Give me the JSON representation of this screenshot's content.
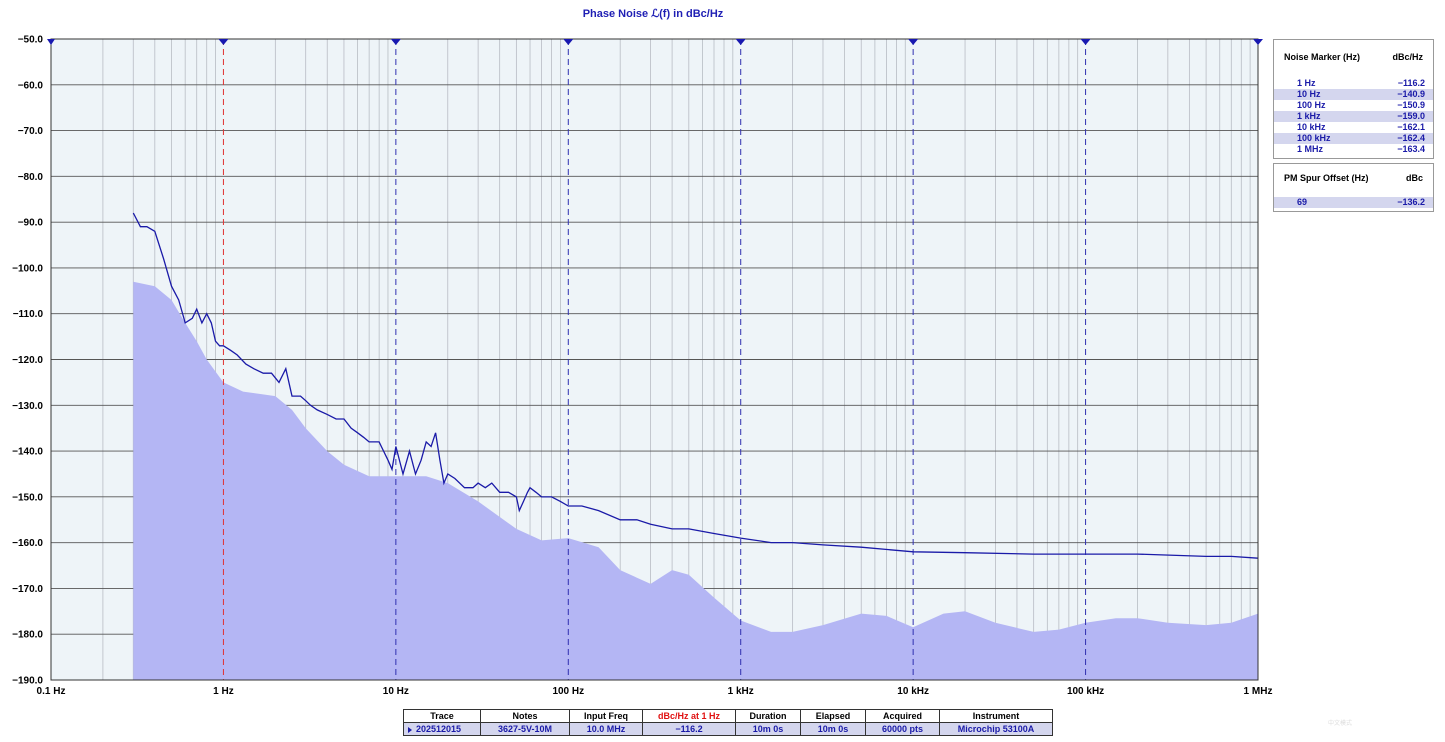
{
  "chart_data": {
    "type": "line",
    "title": "Phase Noise ℒ(f) in dBc/Hz",
    "x_scale": "log",
    "xlim": [
      0.1,
      1000000
    ],
    "ylim": [
      -190,
      -50
    ],
    "y_ticks": [
      "−50.0",
      "−60.0",
      "−70.0",
      "−80.0",
      "−90.0",
      "−100.0",
      "−110.0",
      "−120.0",
      "−130.0",
      "−140.0",
      "−150.0",
      "−160.0",
      "−170.0",
      "−180.0",
      "−190.0"
    ],
    "x_ticks": [
      "0.1 Hz",
      "1 Hz",
      "10 Hz",
      "100 Hz",
      "1 kHz",
      "10 kHz",
      "100 kHz",
      "1 MHz"
    ],
    "grid": true,
    "series": [
      {
        "color": "#1a1aa8",
        "x": [
          0.3,
          0.33,
          0.36,
          0.4,
          0.45,
          0.5,
          0.55,
          0.6,
          0.66,
          0.7,
          0.75,
          0.8,
          0.85,
          0.9,
          0.95,
          1.0,
          1.1,
          1.2,
          1.35,
          1.5,
          1.7,
          1.9,
          2.1,
          2.3,
          2.5,
          2.8,
          3.0,
          3.2,
          3.5,
          4.0,
          4.5,
          5.0,
          5.5,
          6.0,
          6.5,
          7.0,
          8.0,
          9.0,
          9.5,
          10,
          11,
          12,
          13,
          14,
          15,
          16,
          17,
          18,
          19,
          20,
          22,
          25,
          28,
          30,
          33,
          36,
          40,
          45,
          50,
          52,
          55,
          58,
          60,
          65,
          70,
          80,
          90,
          100,
          120,
          150,
          200,
          250,
          300,
          400,
          500,
          700,
          1000,
          1500,
          2000,
          3000,
          5000,
          10000,
          20000,
          50000,
          100000,
          200000,
          500000,
          700000,
          1000000
        ],
        "y": [
          -88,
          -91,
          -91,
          -92,
          -98,
          -104,
          -107,
          -112,
          -111,
          -109,
          -112,
          -110,
          -112,
          -116,
          -117,
          -117,
          -118,
          -119,
          -121,
          -122,
          -123,
          -123,
          -125,
          -122,
          -128,
          -128,
          -129,
          -130,
          -131,
          -132,
          -133,
          -133,
          -135,
          -136,
          -137,
          -138,
          -138,
          -142,
          -144,
          -139,
          -145,
          -140,
          -145,
          -142,
          -138,
          -139,
          -136,
          -142,
          -147,
          -145,
          -146,
          -148,
          -148,
          -147,
          -148,
          -147,
          -149,
          -149,
          -150,
          -153,
          -151,
          -149,
          -148,
          -149,
          -150,
          -150,
          -151,
          -152,
          -152,
          -153,
          -155,
          -155,
          -156,
          -157,
          -157,
          -158,
          -159,
          -160,
          -160,
          -160.5,
          -161,
          -162,
          -162.2,
          -162.5,
          -162.5,
          -162.5,
          -163,
          -163,
          -163.4
        ]
      },
      {
        "color": "#b4b6f4",
        "x": [
          0.3,
          0.4,
          0.5,
          0.6,
          0.7,
          0.8,
          1.0,
          1.3,
          1.6,
          2.0,
          2.5,
          3.0,
          4.0,
          5.0,
          7.0,
          10,
          15,
          20,
          30,
          50,
          70,
          100,
          150,
          200,
          300,
          400,
          500,
          700,
          1000,
          1500,
          2000,
          3000,
          5000,
          7000,
          10000,
          15000,
          20000,
          30000,
          50000,
          70000,
          100000,
          150000,
          200000,
          300000,
          500000,
          700000,
          1000000
        ],
        "y": [
          -103,
          -104,
          -107,
          -112,
          -116,
          -120,
          -125,
          -127,
          -127.5,
          -128,
          -131,
          -135,
          -140,
          -143,
          -145.5,
          -145.5,
          -145.5,
          -147,
          -151,
          -157,
          -159.5,
          -159,
          -161,
          -166,
          -169,
          -166,
          -167,
          -172,
          -177,
          -179.5,
          -179.5,
          -178,
          -175.5,
          -176,
          -178.5,
          -175.5,
          -175,
          -177.5,
          -179.5,
          -179,
          -177.5,
          -176.5,
          -176.5,
          -177.5,
          -178,
          -177.5,
          -175.5
        ]
      }
    ]
  },
  "noise_marker": {
    "header_label": "Noise Marker (Hz)",
    "header_unit": "dBc/Hz",
    "rows": [
      {
        "freq": "1 Hz",
        "value": "−116.2"
      },
      {
        "freq": "10 Hz",
        "value": "−140.9"
      },
      {
        "freq": "100 Hz",
        "value": "−150.9"
      },
      {
        "freq": "1 kHz",
        "value": "−159.0"
      },
      {
        "freq": "10 kHz",
        "value": "−162.1"
      },
      {
        "freq": "100 kHz",
        "value": "−162.4"
      },
      {
        "freq": "1 MHz",
        "value": "−163.4"
      }
    ]
  },
  "pm_spur": {
    "header_label": "PM Spur Offset (Hz)",
    "header_unit": "dBc",
    "rows": [
      {
        "freq": "69",
        "value": "−136.2"
      }
    ]
  },
  "bottom_table": {
    "headers": [
      "Trace",
      "Notes",
      "Input Freq",
      "dBc/Hz at 1 Hz",
      "Duration",
      "Elapsed",
      "Acquired",
      "Instrument"
    ],
    "row": [
      "202512015",
      "3627-5V-10M",
      "10.0 MHz",
      "−116.2",
      "10m 0s",
      "10m 0s",
      "60000 pts",
      "Microchip 53100A"
    ]
  },
  "watermark": "中文模式"
}
